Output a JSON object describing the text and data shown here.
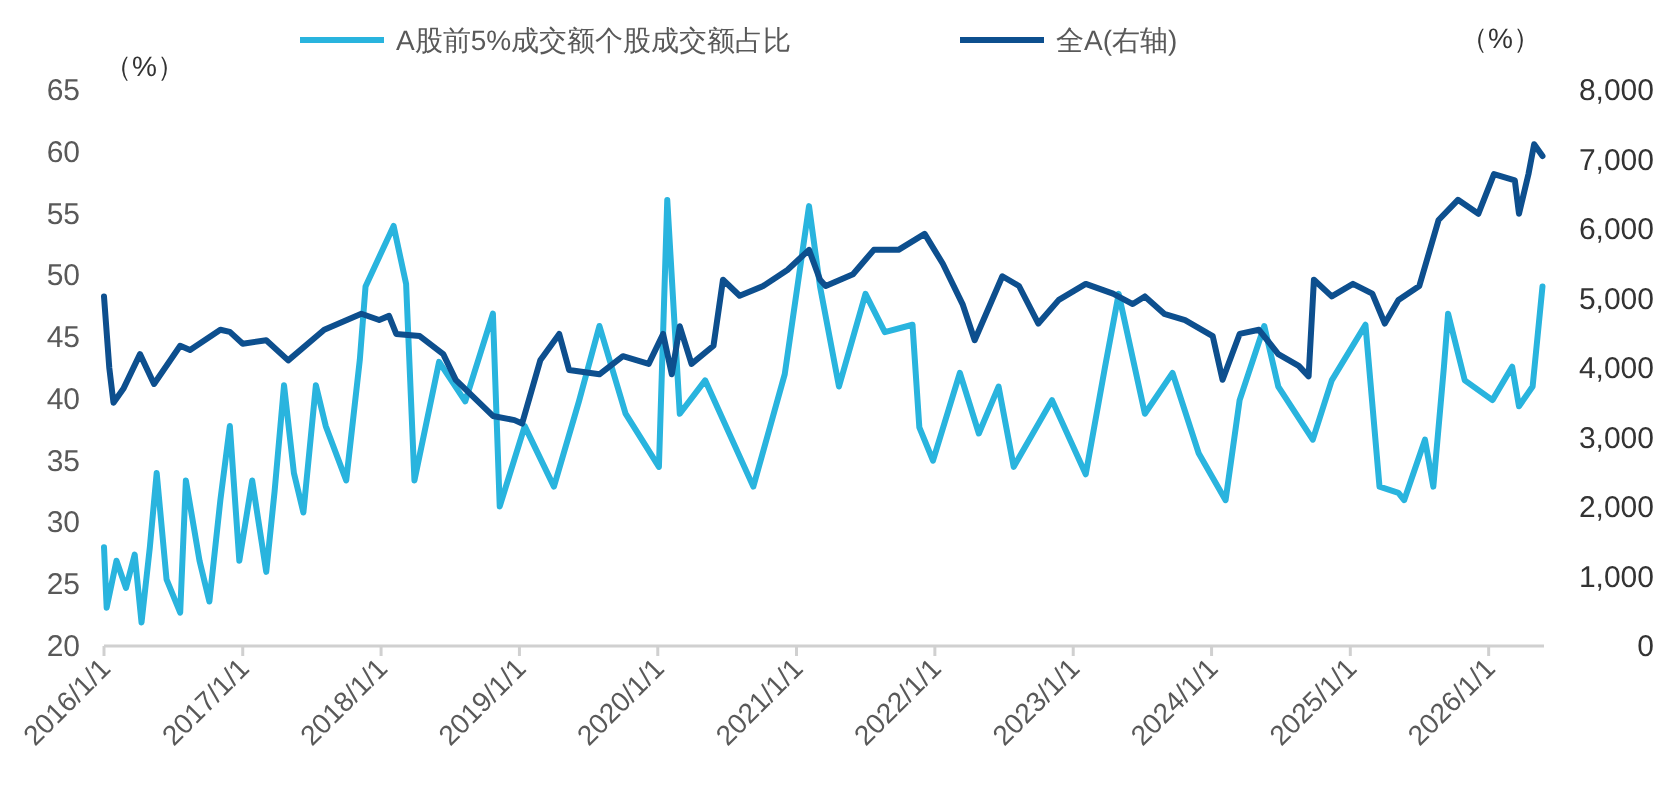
{
  "chart_data": {
    "type": "line",
    "xlim": [
      "2016-01-01",
      "2026-05-27"
    ],
    "xticks": [
      {
        "value": "2016-01-01",
        "label": "2016/1/1"
      },
      {
        "value": "2017-01-01",
        "label": "2017/1/1"
      },
      {
        "value": "2018-01-01",
        "label": "2018/1/1"
      },
      {
        "value": "2019-01-01",
        "label": "2019/1/1"
      },
      {
        "value": "2020-01-01",
        "label": "2020/1/1"
      },
      {
        "value": "2021-01-01",
        "label": "2021/1/1"
      },
      {
        "value": "2022-01-01",
        "label": "2022/1/1"
      },
      {
        "value": "2023-01-01",
        "label": "2023/1/1"
      },
      {
        "value": "2024-01-01",
        "label": "2024/1/1"
      },
      {
        "value": "2025-01-01",
        "label": "2025/1/1"
      },
      {
        "value": "2026-01-01",
        "label": "2026/1/1"
      }
    ],
    "ylim": [
      20,
      65
    ],
    "yticks": [
      20,
      25,
      30,
      35,
      40,
      45,
      50,
      55,
      60,
      65
    ],
    "y2lim": [
      0,
      8000
    ],
    "y2ticks": [
      {
        "value": 0,
        "label": "0"
      },
      {
        "value": 1000,
        "label": "1,000"
      },
      {
        "value": 2000,
        "label": "2,000"
      },
      {
        "value": 3000,
        "label": "3,000"
      },
      {
        "value": 4000,
        "label": "4,000"
      },
      {
        "value": 5000,
        "label": "5,000"
      },
      {
        "value": 6000,
        "label": "6,000"
      },
      {
        "value": 7000,
        "label": "7,000"
      },
      {
        "value": 8000,
        "label": "8,000"
      }
    ],
    "ylabel": "（%）",
    "y2label": "（%）",
    "legend": "top",
    "grid": false,
    "series": [
      {
        "name": "A股前5%成交额个股成交额占比",
        "color": "#29b4de",
        "x": [
          "2016-01-01",
          "2016-01-08",
          "2016-02-03",
          "2016-02-28",
          "2016-03-22",
          "2016-04-09",
          "2016-05-01",
          "2016-05-19",
          "2016-06-14",
          "2016-07-20",
          "2016-08-04",
          "2016-09-09",
          "2016-10-05",
          "2016-11-03",
          "2016-11-28",
          "2016-12-23",
          "2017-01-26",
          "2017-03-04",
          "2017-03-26",
          "2017-04-20",
          "2017-05-16",
          "2017-06-10",
          "2017-07-13",
          "2017-08-08",
          "2017-10-01",
          "2017-11-06",
          "2017-11-21",
          "2018-02-03",
          "2018-03-08",
          "2018-03-30",
          "2018-06-03",
          "2018-08-11",
          "2018-10-23",
          "2018-11-10",
          "2019-01-15",
          "2019-04-02",
          "2019-06-07",
          "2019-07-31",
          "2019-10-08",
          "2020-01-04",
          "2020-01-26",
          "2020-02-28",
          "2020-05-05",
          "2020-09-09",
          "2020-12-01",
          "2021-02-03",
          "2021-03-04",
          "2021-04-23",
          "2021-07-02",
          "2021-08-22",
          "2021-11-03",
          "2021-11-21",
          "2021-12-27",
          "2022-03-08",
          "2022-04-27",
          "2022-06-18",
          "2022-07-28",
          "2022-11-06",
          "2023-02-03",
          "2023-03-26",
          "2023-05-01",
          "2023-07-09",
          "2023-09-20",
          "2023-11-28",
          "2024-02-07",
          "2024-03-15",
          "2024-05-19",
          "2024-06-25",
          "2024-09-24",
          "2024-11-13",
          "2025-02-10",
          "2025-03-19",
          "2025-05-08",
          "2025-05-23",
          "2025-07-17",
          "2025-08-08",
          "2025-09-05",
          "2025-09-16",
          "2025-10-30",
          "2026-01-11",
          "2026-03-04",
          "2026-03-22",
          "2026-04-27",
          "2026-05-23"
        ],
        "values": [
          28.0,
          23.1,
          26.9,
          24.7,
          27.4,
          21.9,
          28.0,
          34.0,
          25.4,
          22.7,
          33.4,
          26.9,
          23.6,
          31.8,
          37.8,
          26.9,
          33.4,
          26.0,
          32.5,
          41.1,
          34.0,
          30.8,
          41.1,
          37.8,
          33.4,
          43.2,
          49.1,
          54.0,
          49.3,
          33.4,
          43.0,
          39.8,
          46.9,
          31.3,
          37.8,
          32.9,
          39.8,
          45.9,
          38.8,
          34.5,
          56.1,
          38.8,
          41.5,
          32.9,
          42.0,
          55.6,
          49.1,
          41.0,
          48.5,
          45.4,
          46.0,
          37.7,
          35.0,
          42.1,
          37.2,
          41.0,
          34.5,
          39.9,
          33.9,
          42.6,
          48.5,
          38.8,
          42.1,
          35.6,
          31.8,
          39.9,
          45.9,
          41.0,
          36.7,
          41.5,
          46.0,
          32.9,
          32.4,
          31.8,
          36.7,
          32.9,
          42.6,
          46.9,
          41.5,
          39.9,
          42.6,
          39.4,
          41.0,
          49.1
        ]
      },
      {
        "name": "全A(右轴)",
        "color": "#0d4f8e",
        "axis": "y2",
        "x": [
          "2016-01-01",
          "2016-01-15",
          "2016-01-26",
          "2016-02-21",
          "2016-04-05",
          "2016-05-12",
          "2016-07-20",
          "2016-08-15",
          "2016-11-03",
          "2016-11-28",
          "2017-01-01",
          "2017-03-04",
          "2017-05-01",
          "2017-08-04",
          "2017-11-10",
          "2017-12-27",
          "2018-01-22",
          "2018-02-10",
          "2018-04-13",
          "2018-06-14",
          "2018-07-17",
          "2018-10-23",
          "2018-12-19",
          "2019-01-08",
          "2019-02-25",
          "2019-04-16",
          "2019-05-12",
          "2019-07-31",
          "2019-10-01",
          "2019-12-08",
          "2020-01-15",
          "2020-02-07",
          "2020-02-28",
          "2020-03-30",
          "2020-05-27",
          "2020-06-21",
          "2020-08-04",
          "2020-10-05",
          "2020-12-08",
          "2021-02-03",
          "2021-03-04",
          "2021-03-19",
          "2021-05-30",
          "2021-07-24",
          "2021-09-27",
          "2021-12-05",
          "2022-01-22",
          "2022-03-15",
          "2022-04-16",
          "2022-06-28",
          "2022-08-11",
          "2022-10-01",
          "2022-11-24",
          "2023-02-03",
          "2023-04-16",
          "2023-06-07",
          "2023-07-09",
          "2023-08-29",
          "2023-10-23",
          "2024-01-04",
          "2024-01-30",
          "2024-03-15",
          "2024-05-05",
          "2024-06-25",
          "2024-08-18",
          "2024-09-13",
          "2024-09-27",
          "2024-11-13",
          "2025-01-08",
          "2025-02-28",
          "2025-04-02",
          "2025-05-08",
          "2025-07-02",
          "2025-08-22",
          "2025-10-12",
          "2025-12-05",
          "2026-01-15",
          "2026-03-11",
          "2026-03-22",
          "2026-04-16",
          "2026-05-01",
          "2026-05-23"
        ],
        "values": [
          5030,
          4000,
          3500,
          3700,
          4200,
          3770,
          4320,
          4260,
          4550,
          4520,
          4350,
          4400,
          4110,
          4550,
          4780,
          4690,
          4750,
          4490,
          4460,
          4200,
          3830,
          3310,
          3250,
          3200,
          4110,
          4490,
          3970,
          3910,
          4170,
          4060,
          4490,
          3910,
          4600,
          4060,
          4320,
          5270,
          5040,
          5180,
          5410,
          5700,
          5270,
          5180,
          5350,
          5700,
          5700,
          5930,
          5500,
          4920,
          4400,
          5320,
          5180,
          4640,
          4980,
          5210,
          5070,
          4920,
          5030,
          4780,
          4690,
          4460,
          3830,
          4490,
          4550,
          4200,
          4030,
          3880,
          5270,
          5030,
          5210,
          5070,
          4640,
          4980,
          5180,
          6130,
          6420,
          6220,
          6790,
          6700,
          6220,
          6790,
          7220,
          7050
        ]
      }
    ]
  }
}
